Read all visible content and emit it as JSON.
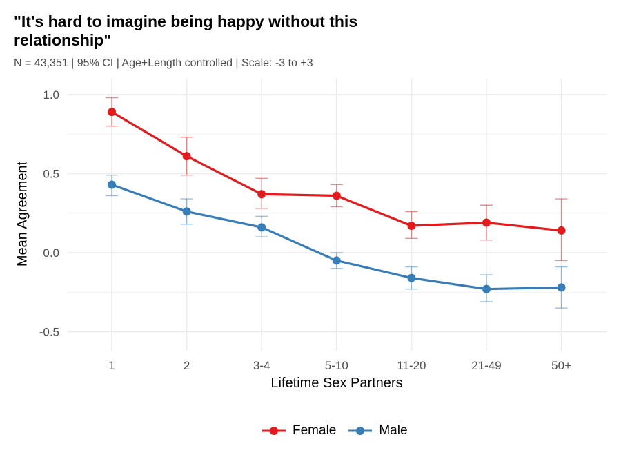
{
  "chart_data": {
    "type": "line",
    "title": "\"It's hard to imagine being happy without this relationship\"",
    "subtitle": "N = 43,351 | 95% CI | Age+Length controlled | Scale: -3 to +3",
    "xlabel": "Lifetime Sex Partners",
    "ylabel": "Mean Agreement",
    "categories": [
      "1",
      "2",
      "3-4",
      "5-10",
      "11-20",
      "21-49",
      "50+"
    ],
    "ylim": [
      -0.62,
      1.1
    ],
    "yticks": [
      -0.5,
      0.0,
      0.5,
      1.0
    ],
    "ytick_labels": [
      "-0.5",
      "0.0",
      "0.5",
      "1.0"
    ],
    "grid": true,
    "legend_position": "bottom",
    "series": [
      {
        "name": "Female",
        "color": "#E41A1C",
        "values": [
          0.89,
          0.61,
          0.37,
          0.36,
          0.17,
          0.19,
          0.14
        ],
        "ci_low": [
          0.8,
          0.49,
          0.28,
          0.29,
          0.09,
          0.08,
          -0.05
        ],
        "ci_high": [
          0.98,
          0.73,
          0.47,
          0.43,
          0.26,
          0.3,
          0.34
        ]
      },
      {
        "name": "Male",
        "color": "#377EB8",
        "values": [
          0.43,
          0.26,
          0.16,
          -0.05,
          -0.16,
          -0.23,
          -0.22
        ],
        "ci_low": [
          0.36,
          0.18,
          0.1,
          -0.1,
          -0.23,
          -0.31,
          -0.35
        ],
        "ci_high": [
          0.49,
          0.34,
          0.23,
          0.0,
          -0.09,
          -0.14,
          -0.09
        ]
      }
    ]
  }
}
